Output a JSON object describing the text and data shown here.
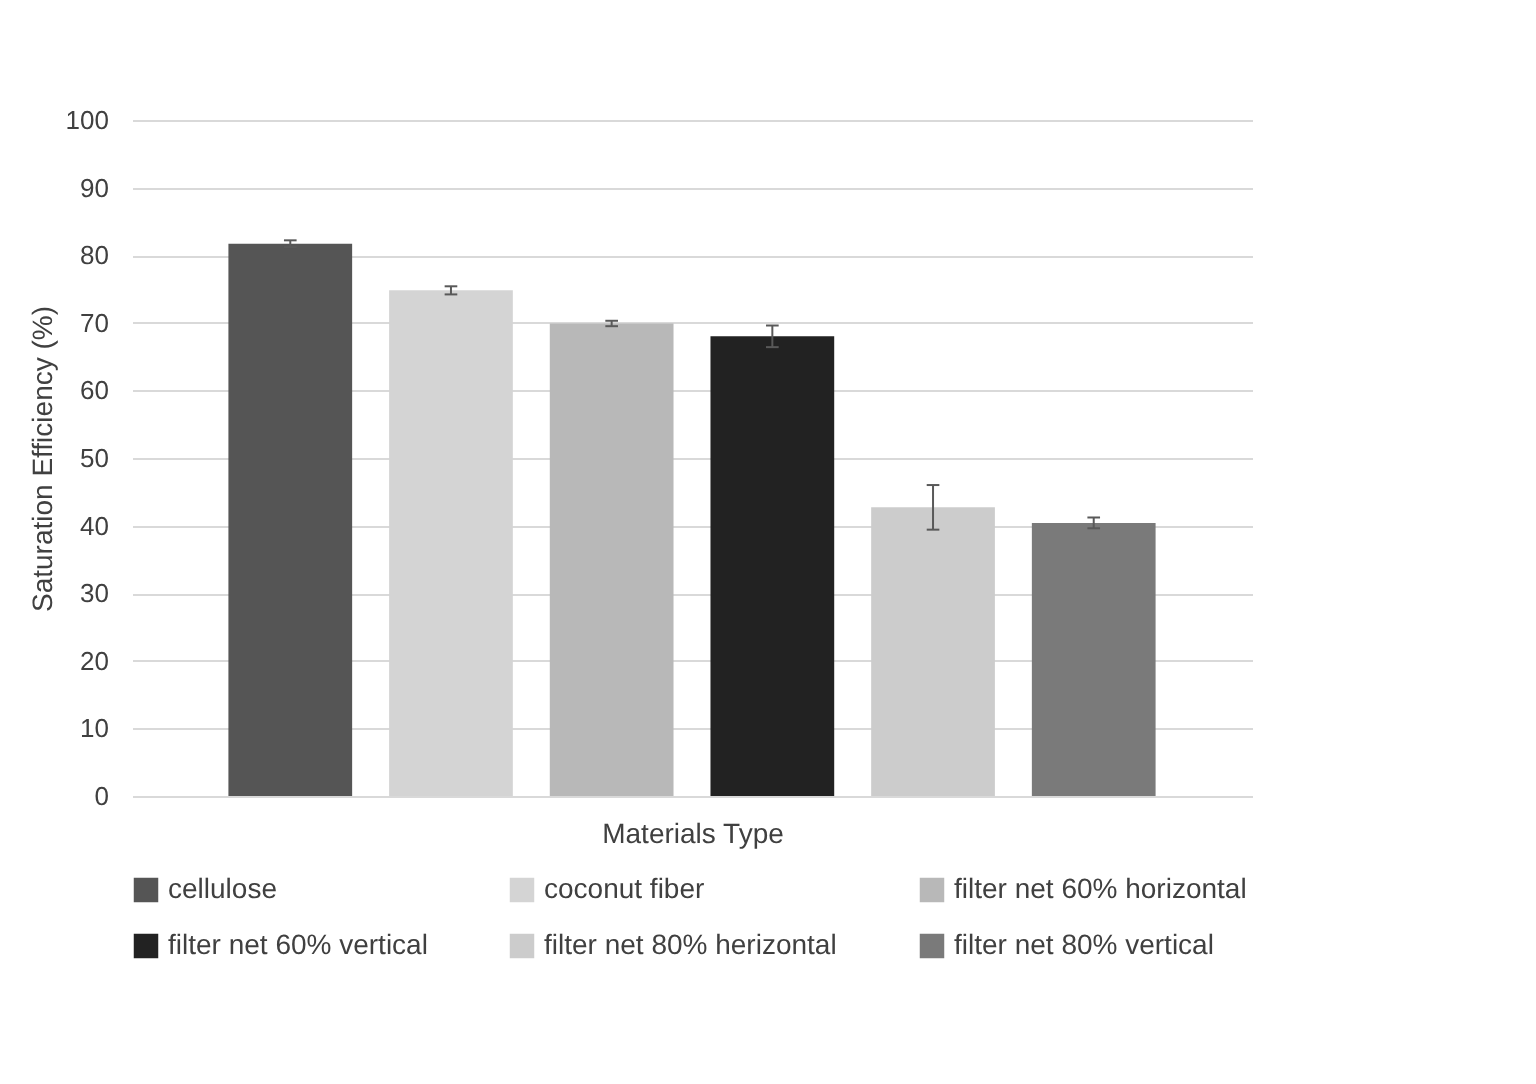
{
  "chart_data": {
    "type": "bar",
    "xlabel": "Materials Type",
    "ylabel": "Saturation Efficiency (%)",
    "categories": [
      null,
      null,
      null,
      null,
      null,
      null
    ],
    "series": [
      {
        "name": "cellulose",
        "color": "#555555",
        "values": [
          81.7,
          null,
          null,
          null,
          null,
          null
        ],
        "errors": [
          0.5,
          null,
          null,
          null,
          null,
          null
        ]
      },
      {
        "name": "coconut fiber",
        "color": "#d4d4d4",
        "values": [
          null,
          74.8,
          null,
          null,
          null,
          null
        ],
        "errors": [
          null,
          0.6,
          null,
          null,
          null,
          null
        ]
      },
      {
        "name": "filter net 60% horizontal",
        "color": "#b8b8b8",
        "values": [
          null,
          null,
          69.9,
          null,
          null,
          null
        ],
        "errors": [
          null,
          null,
          0.4,
          null,
          null,
          null
        ]
      },
      {
        "name": "filter net 60% vertical",
        "color": "#222222",
        "values": [
          null,
          null,
          null,
          68.0,
          null,
          null
        ],
        "errors": [
          null,
          null,
          null,
          1.6,
          null,
          null
        ]
      },
      {
        "name": "filter net 80% herizontal",
        "color": "#cccccc",
        "values": [
          null,
          null,
          null,
          null,
          42.7,
          null
        ],
        "errors": [
          null,
          null,
          null,
          null,
          3.3,
          null
        ]
      },
      {
        "name": "filter net 80% vertical",
        "color": "#7a7a7a",
        "values": [
          null,
          null,
          null,
          null,
          null,
          40.4
        ],
        "errors": [
          null,
          null,
          null,
          null,
          null,
          0.8
        ]
      }
    ],
    "ylim": [
      0,
      100
    ],
    "yticks": [
      0,
      10,
      20,
      30,
      40,
      50,
      60,
      70,
      80,
      90,
      100
    ],
    "grid": "y",
    "legend": "bottom"
  }
}
